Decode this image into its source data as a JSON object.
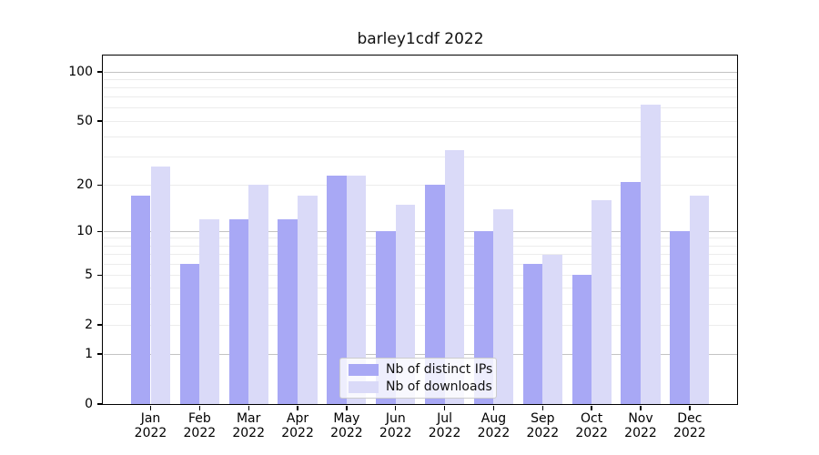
{
  "chart_data": {
    "type": "bar",
    "title": "barley1cdf 2022",
    "categories": [
      {
        "month": "Jan",
        "year": "2022"
      },
      {
        "month": "Feb",
        "year": "2022"
      },
      {
        "month": "Mar",
        "year": "2022"
      },
      {
        "month": "Apr",
        "year": "2022"
      },
      {
        "month": "May",
        "year": "2022"
      },
      {
        "month": "Jun",
        "year": "2022"
      },
      {
        "month": "Jul",
        "year": "2022"
      },
      {
        "month": "Aug",
        "year": "2022"
      },
      {
        "month": "Sep",
        "year": "2022"
      },
      {
        "month": "Oct",
        "year": "2022"
      },
      {
        "month": "Nov",
        "year": "2022"
      },
      {
        "month": "Dec",
        "year": "2022"
      }
    ],
    "series": [
      {
        "name": "Nb of distinct IPs",
        "color": "#a8a8f5",
        "values": [
          17,
          6,
          12,
          12,
          23,
          10,
          20,
          10,
          6,
          5,
          21,
          10
        ]
      },
      {
        "name": "Nb of downloads",
        "color": "#dadaf8",
        "values": [
          26,
          12,
          20,
          17,
          23,
          15,
          33,
          14,
          7,
          16,
          63,
          17
        ]
      }
    ],
    "xlabel": "",
    "ylabel": "",
    "yscale": "log1p",
    "ylim": [
      0,
      126
    ],
    "yticks": [
      {
        "label": "100",
        "value": 100
      },
      {
        "label": "50",
        "value": 50
      },
      {
        "label": "20",
        "value": 20
      },
      {
        "label": "10",
        "value": 10
      },
      {
        "label": "5",
        "value": 5
      },
      {
        "label": "2",
        "value": 2
      },
      {
        "label": "1",
        "value": 1
      },
      {
        "label": "0",
        "value": 0
      }
    ],
    "major_gridlines": [
      1,
      10,
      100
    ],
    "minor_gridlines": [
      2,
      3,
      4,
      5,
      6,
      7,
      8,
      9,
      20,
      30,
      40,
      50,
      60,
      70,
      80,
      90
    ],
    "grid": true,
    "legend_position": "lower-center-inside"
  },
  "colors": {
    "spine": "#000000",
    "major_grid": "#c3c3c3",
    "minor_grid": "#ececec",
    "legend_border": "#cccccc",
    "legend_background": "rgba(255,255,255,0.8)",
    "text": "#111111"
  }
}
